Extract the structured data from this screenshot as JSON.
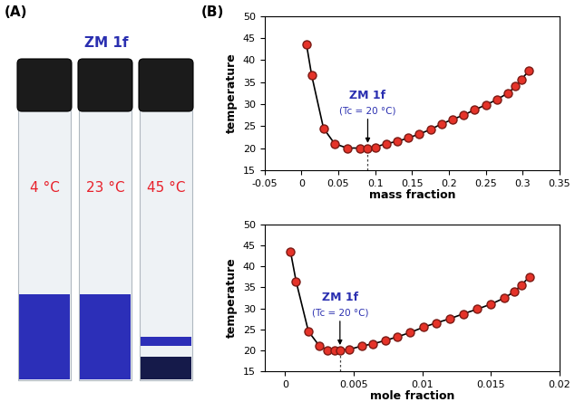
{
  "panel_labels": [
    "(A)",
    "(B)"
  ],
  "vials": {
    "title": "ZM 1f",
    "labels": [
      "4 °C",
      "23 °C",
      "45 °C"
    ]
  },
  "chart_data": [
    {
      "type": "line",
      "x_label": "mass fraction",
      "y_label": "temperature",
      "x": [
        0.007,
        0.014,
        0.03,
        0.045,
        0.062,
        0.08,
        0.09,
        0.1,
        0.115,
        0.13,
        0.145,
        0.16,
        0.175,
        0.19,
        0.205,
        0.22,
        0.235,
        0.25,
        0.265,
        0.28,
        0.29,
        0.298,
        0.308
      ],
      "values": [
        43.5,
        36.5,
        24.5,
        21,
        20,
        20,
        20,
        20.2,
        21,
        21.5,
        22.3,
        23.2,
        24.2,
        25.5,
        26.5,
        27.5,
        28.7,
        29.8,
        31,
        32.5,
        34,
        35.5,
        37.5
      ],
      "color": "#e53329",
      "marker": "o",
      "line_style": "solid",
      "xlim": [
        -0.05,
        0.35
      ],
      "xticks": [
        -0.05,
        0,
        0.05,
        0.1,
        0.15,
        0.2,
        0.25,
        0.3,
        0.35
      ],
      "ylim": [
        15,
        50
      ],
      "yticks": [
        15,
        20,
        25,
        30,
        35,
        40,
        45,
        50
      ],
      "grid": false,
      "annotation": {
        "label": "ZM 1f",
        "note": "(Tc = 20 °C)",
        "x": 0.09,
        "y": 20
      }
    },
    {
      "type": "line",
      "x_label": "mole fraction",
      "y_label": "temperature",
      "x": [
        0.0004,
        0.0008,
        0.0017,
        0.0025,
        0.0031,
        0.0036,
        0.004,
        0.0047,
        0.0056,
        0.0064,
        0.0073,
        0.0082,
        0.0091,
        0.0101,
        0.011,
        0.012,
        0.013,
        0.014,
        0.015,
        0.016,
        0.0167,
        0.0172,
        0.0178
      ],
      "values": [
        43.5,
        36.5,
        24.5,
        21,
        20,
        20,
        20,
        20.2,
        21,
        21.5,
        22.3,
        23.2,
        24.2,
        25.5,
        26.5,
        27.5,
        28.7,
        29.8,
        31,
        32.5,
        34,
        35.5,
        37.5
      ],
      "color": "#e53329",
      "marker": "o",
      "line_style": "solid",
      "xlim": [
        -0.0015,
        0.02
      ],
      "xticks": [
        0,
        0.005,
        0.01,
        0.015,
        0.02
      ],
      "ylim": [
        15,
        50
      ],
      "yticks": [
        15,
        20,
        25,
        30,
        35,
        40,
        45,
        50
      ],
      "grid": false,
      "annotation": {
        "label": "ZM 1f",
        "note": "(Tc = 20 °C)",
        "x": 0.004,
        "y": 20
      }
    }
  ]
}
